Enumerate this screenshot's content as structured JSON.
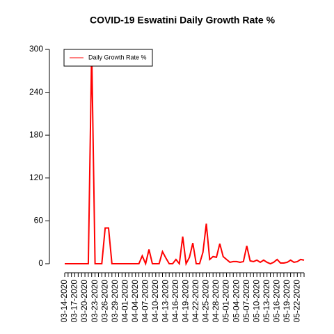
{
  "chart_data": {
    "type": "line",
    "title": "COVID-19 Eswatini Daily Growth Rate %",
    "categories": [
      "03-14-2020",
      null,
      null,
      "03-17-2020",
      null,
      null,
      "03-20-2020",
      null,
      null,
      "03-23-2020",
      null,
      null,
      "03-26-2020",
      null,
      null,
      "03-29-2020",
      null,
      null,
      "04-01-2020",
      null,
      null,
      "04-04-2020",
      null,
      null,
      "04-07-2020",
      null,
      null,
      "04-10-2020",
      null,
      null,
      "04-13-2020",
      null,
      null,
      "04-16-2020",
      null,
      null,
      "04-19-2020",
      null,
      null,
      "04-22-2020",
      null,
      null,
      "04-25-2020",
      null,
      null,
      "04-28-2020",
      null,
      null,
      "05-01-2020",
      null,
      null,
      "05-04-2020",
      null,
      null,
      "05-07-2020",
      null,
      null,
      "05-10-2020",
      null,
      null,
      "05-13-2020",
      null,
      null,
      "05-16-2020",
      null,
      null,
      "05-19-2020",
      null,
      null,
      "05-22-2020",
      null,
      null
    ],
    "series": [
      {
        "name": "Daily Growth Rate %",
        "color": "#ff0000",
        "values": [
          0,
          0,
          0,
          0,
          0,
          0,
          0,
          0,
          300,
          0,
          0,
          0,
          50,
          50,
          0,
          0,
          0,
          0,
          0,
          0,
          0,
          0,
          0,
          11,
          0,
          20,
          0,
          0,
          0,
          17,
          8,
          0,
          0,
          6,
          0,
          38,
          0,
          9,
          29,
          0,
          0,
          16,
          56,
          6,
          10,
          9,
          28,
          10,
          6,
          2,
          3,
          3,
          2,
          3,
          25,
          4,
          3,
          5,
          2,
          5,
          2,
          0,
          2,
          6,
          1,
          1,
          2,
          5,
          2,
          3,
          6,
          5
        ]
      }
    ],
    "ylim": [
      0,
      300
    ],
    "yticks": [
      0,
      60,
      120,
      180,
      240,
      300
    ],
    "legend": "top-left"
  }
}
